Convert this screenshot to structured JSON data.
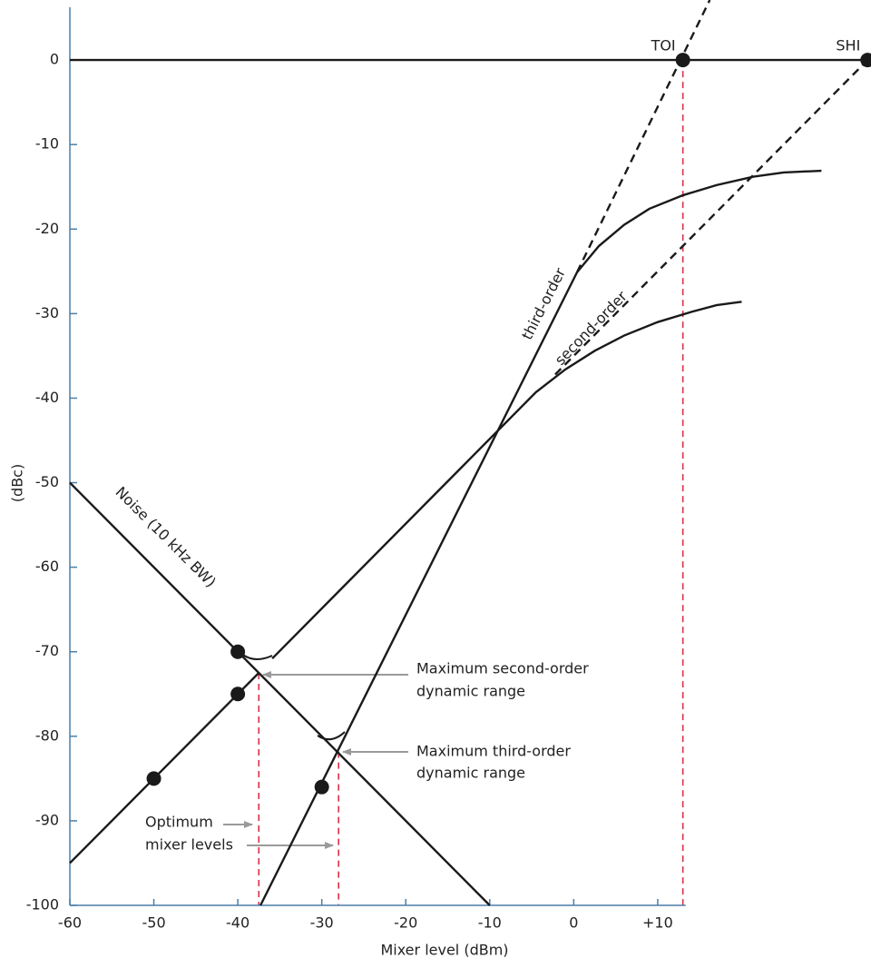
{
  "chart_data": {
    "type": "line",
    "xlabel": "Mixer level (dBm)",
    "ylabel": "(dBc)",
    "xlim": [
      -60,
      35.4
    ],
    "ylim": [
      -100,
      7.1
    ],
    "xticks": [
      -60,
      -50,
      -40,
      -30,
      -20,
      -10,
      0,
      {
        "value": 10,
        "label": "+10"
      }
    ],
    "yticks": [
      0,
      -10,
      -20,
      -30,
      -40,
      -50,
      -60,
      -70,
      -80,
      -90,
      -100
    ],
    "series": [
      {
        "name": "Noise (10 kHz BW)",
        "color": "#1a1a1a",
        "x": [
          -60,
          -10
        ],
        "values": [
          -50,
          -100
        ]
      },
      {
        "name": "third-order",
        "color": "#1a1a1a",
        "x": [
          -37.3,
          0.4,
          3,
          6,
          9,
          13,
          17,
          21.4,
          25,
          29.5
        ],
        "values": [
          -100,
          -25.1,
          -22,
          -19.5,
          -17.6,
          -16,
          -14.8,
          -13.8,
          -13.3,
          -13.1
        ]
      },
      {
        "name": "second-order",
        "color": "#1a1a1a",
        "x": [
          -35.9,
          -4.5,
          -1,
          2.5,
          6,
          10,
          14,
          17,
          20
        ],
        "values": [
          -70.8,
          -39.3,
          -36.6,
          -34.4,
          -32.6,
          -31,
          -29.8,
          -29,
          -28.6
        ]
      }
    ],
    "lines": [
      {
        "color": "#1a1a1a",
        "dash": false,
        "x": [
          -60,
          35.4
        ],
        "values": [
          0,
          0
        ]
      },
      {
        "color": "#1a1a1a",
        "dash": false,
        "x": [
          -60,
          -37.5
        ],
        "values": [
          -95,
          -72.5
        ]
      },
      {
        "color": "#1a1a1a",
        "dash": true,
        "x": [
          0.4,
          16.2
        ],
        "values": [
          -25.1,
          7.1
        ]
      },
      {
        "color": "#1a1a1a",
        "dash": true,
        "x": [
          -2.2,
          35
        ],
        "values": [
          -37.2,
          0
        ]
      }
    ],
    "markers": [
      {
        "label": "TOI",
        "x": 13,
        "y": 0
      },
      {
        "label": "SHI",
        "x": 35,
        "y": 0
      },
      {
        "x": -40,
        "y": -70
      },
      {
        "x": -40,
        "y": -75
      },
      {
        "x": -50,
        "y": -85
      },
      {
        "x": -30,
        "y": -86
      }
    ],
    "guides": [
      {
        "x": -37.5,
        "y": -72.5
      },
      {
        "x": -28,
        "y": -81.8
      },
      {
        "x": 13,
        "y": 0
      }
    ],
    "guide_color": "#d9304a",
    "annotations": [
      {
        "lines": [
          "Maximum second-order",
          "dynamic range"
        ]
      },
      {
        "lines": [
          "Maximum third-order",
          "dynamic range"
        ]
      },
      {
        "lines": [
          "Optimum",
          "mixer levels"
        ]
      }
    ]
  }
}
